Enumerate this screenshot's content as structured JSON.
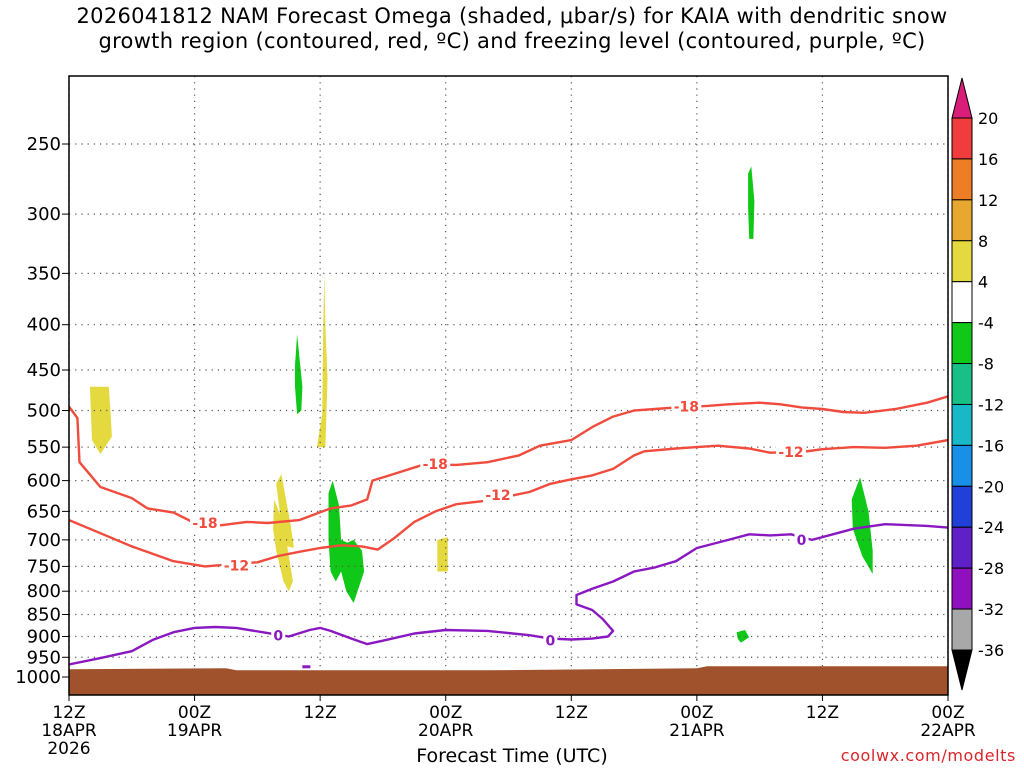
{
  "title": {
    "line1": "2026041812 NAM Forecast Omega (shaded, μbar/s) for KAIA with dendritic snow",
    "line2": "growth region (contoured, red, ºC) and freezing level (contoured, purple, ºC)"
  },
  "credit": "coolwx.com/modelts",
  "chart_data": {
    "type": "heatmap",
    "xlabel": "Forecast Time (UTC)",
    "ylabel": "",
    "x_unit": "hours since 2026-04-18 12Z",
    "xlim": [
      0,
      84
    ],
    "ylim": [
      1000,
      200
    ],
    "y_scale": "log-pressure",
    "grid": true,
    "x_ticks": [
      {
        "x": 0,
        "label": [
          "12Z",
          "18APR",
          "2026"
        ]
      },
      {
        "x": 12,
        "label": [
          "00Z",
          "19APR"
        ]
      },
      {
        "x": 24,
        "label": [
          "12Z"
        ]
      },
      {
        "x": 36,
        "label": [
          "00Z",
          "20APR"
        ]
      },
      {
        "x": 48,
        "label": [
          "12Z"
        ]
      },
      {
        "x": 60,
        "label": [
          "00Z",
          "21APR"
        ]
      },
      {
        "x": 72,
        "label": [
          "12Z"
        ]
      },
      {
        "x": 84,
        "label": [
          "00Z",
          "22APR"
        ]
      }
    ],
    "y_ticks": [
      250,
      300,
      350,
      400,
      450,
      500,
      550,
      600,
      650,
      700,
      750,
      800,
      850,
      900,
      950,
      1000
    ],
    "colorbar": {
      "labels": [
        "20",
        "16",
        "12",
        "8",
        "4",
        "-4",
        "-8",
        "-12",
        "-16",
        "-20",
        "-24",
        "-28",
        "-32",
        "-36"
      ],
      "colors": [
        "#d81e78",
        "#f03c3c",
        "#ee7e26",
        "#e8a830",
        "#e4da40",
        "#ffffff",
        "#10c818",
        "#18c088",
        "#18b8c8",
        "#1890e8",
        "#2040d8",
        "#6020c8",
        "#9010c0",
        "#a8a8a8",
        "#000000"
      ]
    },
    "contours": [
      {
        "name": "-18",
        "color": "#f04b3c",
        "label_pos": [
          [
            13,
            670
          ],
          [
            35,
            575
          ],
          [
            59,
            495
          ]
        ],
        "points": [
          [
            0,
            495
          ],
          [
            0.8,
            510
          ],
          [
            1,
            572
          ],
          [
            3,
            610
          ],
          [
            6,
            628
          ],
          [
            7.5,
            645
          ],
          [
            10,
            652
          ],
          [
            12,
            670
          ],
          [
            14,
            675
          ],
          [
            17,
            668
          ],
          [
            19,
            670
          ],
          [
            22,
            665
          ],
          [
            23.5,
            655
          ],
          [
            25,
            645
          ],
          [
            27,
            640
          ],
          [
            28.5,
            630
          ],
          [
            29,
            600
          ],
          [
            31,
            590
          ],
          [
            34,
            575
          ],
          [
            37,
            576
          ],
          [
            40,
            572
          ],
          [
            43,
            562
          ],
          [
            45,
            548
          ],
          [
            48,
            540
          ],
          [
            50,
            522
          ],
          [
            52,
            508
          ],
          [
            54,
            500
          ],
          [
            56,
            498
          ],
          [
            58,
            496
          ],
          [
            61,
            494
          ],
          [
            63,
            492
          ],
          [
            66,
            490
          ],
          [
            68,
            492
          ],
          [
            70,
            496
          ],
          [
            72,
            498
          ],
          [
            74,
            502
          ],
          [
            76,
            503
          ],
          [
            79,
            498
          ],
          [
            82,
            490
          ],
          [
            84,
            482
          ]
        ]
      },
      {
        "name": "-12",
        "color": "#f04b3c",
        "label_pos": [
          [
            16,
            748
          ],
          [
            41,
            623
          ],
          [
            69,
            557
          ]
        ],
        "points": [
          [
            0,
            665
          ],
          [
            3,
            688
          ],
          [
            6,
            712
          ],
          [
            10,
            740
          ],
          [
            13,
            750
          ],
          [
            16,
            745
          ],
          [
            18,
            742
          ],
          [
            20,
            730
          ],
          [
            22,
            722
          ],
          [
            24,
            715
          ],
          [
            26,
            710
          ],
          [
            28,
            712
          ],
          [
            29.5,
            718
          ],
          [
            31,
            698
          ],
          [
            33,
            668
          ],
          [
            35,
            650
          ],
          [
            37,
            638
          ],
          [
            40,
            632
          ],
          [
            44,
            618
          ],
          [
            46,
            605
          ],
          [
            48,
            598
          ],
          [
            50,
            592
          ],
          [
            52,
            582
          ],
          [
            54,
            562
          ],
          [
            55,
            556
          ],
          [
            58,
            552
          ],
          [
            60,
            550
          ],
          [
            62,
            548
          ],
          [
            65,
            552
          ],
          [
            67,
            558
          ],
          [
            70,
            557
          ],
          [
            72,
            553
          ],
          [
            75,
            550
          ],
          [
            78,
            551
          ],
          [
            81,
            548
          ],
          [
            84,
            540
          ]
        ]
      },
      {
        "name": "0",
        "color": "#8a18c0",
        "label_pos": [
          [
            20,
            898
          ],
          [
            46,
            910
          ],
          [
            70,
            700
          ]
        ],
        "points": [
          [
            0,
            968
          ],
          [
            3,
            952
          ],
          [
            6,
            935
          ],
          [
            8,
            908
          ],
          [
            10,
            890
          ],
          [
            12,
            880
          ],
          [
            14,
            878
          ],
          [
            16,
            880
          ],
          [
            19,
            892
          ],
          [
            21,
            900
          ],
          [
            23,
            885
          ],
          [
            24,
            880
          ],
          [
            25,
            887
          ],
          [
            27,
            905
          ],
          [
            28.5,
            918
          ],
          [
            30,
            910
          ],
          [
            33,
            893
          ],
          [
            36,
            885
          ],
          [
            40,
            887
          ],
          [
            44,
            897
          ],
          [
            46,
            905
          ],
          [
            48,
            907
          ],
          [
            50,
            905
          ],
          [
            51.5,
            900
          ],
          [
            52,
            887
          ],
          [
            51,
            860
          ],
          [
            50,
            840
          ],
          [
            48.5,
            828
          ],
          [
            48.5,
            808
          ],
          [
            50,
            795
          ],
          [
            52,
            780
          ],
          [
            54,
            760
          ],
          [
            56,
            752
          ],
          [
            58,
            740
          ],
          [
            60,
            715
          ],
          [
            63,
            700
          ],
          [
            65,
            690
          ],
          [
            67,
            692
          ],
          [
            69,
            690
          ],
          [
            71,
            700
          ],
          [
            73,
            690
          ],
          [
            75,
            680
          ],
          [
            78,
            672
          ],
          [
            82,
            675
          ],
          [
            84,
            678
          ]
        ]
      }
    ],
    "omega_shaded": [
      {
        "value": "4 to 8",
        "color": "#e4da40",
        "points": [
          [
            2,
            470
          ],
          [
            3.8,
            470
          ],
          [
            4,
            510
          ],
          [
            4.1,
            535
          ],
          [
            3,
            560
          ],
          [
            2.2,
            540
          ],
          [
            2.1,
            505
          ]
        ]
      },
      {
        "value": "4 to 8",
        "color": "#e4da40",
        "points": [
          [
            19.8,
            605
          ],
          [
            20.3,
            590
          ],
          [
            21.2,
            675
          ],
          [
            21.5,
            715
          ],
          [
            20.5,
            710
          ],
          [
            20.2,
            660
          ]
        ]
      },
      {
        "value": "4 to 8",
        "color": "#e4da40",
        "points": [
          [
            23.7,
            550
          ],
          [
            24.2,
            505
          ],
          [
            24.3,
            400
          ],
          [
            24.4,
            350
          ],
          [
            24.5,
            400
          ],
          [
            24.7,
            460
          ],
          [
            24.5,
            550
          ]
        ]
      },
      {
        "value": "4 to 8",
        "color": "#e4da40",
        "points": [
          [
            19.6,
            630
          ],
          [
            20.5,
            670
          ],
          [
            21.4,
            780
          ],
          [
            21,
            800
          ],
          [
            20.5,
            780
          ],
          [
            19.8,
            720
          ],
          [
            19.5,
            680
          ]
        ]
      },
      {
        "value": "4 to 8",
        "color": "#e4da40",
        "points": [
          [
            35.2,
            700
          ],
          [
            36.2,
            695
          ],
          [
            36.2,
            760
          ],
          [
            35.2,
            760
          ]
        ]
      },
      {
        "value": "-4 to -8",
        "color": "#10c818",
        "points": [
          [
            21.8,
            410
          ],
          [
            22.3,
            470
          ],
          [
            22.2,
            500
          ],
          [
            21.8,
            505
          ],
          [
            21.6,
            470
          ],
          [
            21.6,
            445
          ]
        ]
      },
      {
        "value": "-4 to -8",
        "color": "#10c818",
        "points": [
          [
            24.8,
            620
          ],
          [
            25.2,
            600
          ],
          [
            25.8,
            640
          ],
          [
            26,
            700
          ],
          [
            26.6,
            705
          ],
          [
            27.2,
            700
          ],
          [
            28,
            720
          ],
          [
            28.2,
            760
          ],
          [
            27.2,
            825
          ],
          [
            26.5,
            800
          ],
          [
            26,
            760
          ],
          [
            25.5,
            780
          ],
          [
            25,
            760
          ],
          [
            24.8,
            700
          ]
        ]
      },
      {
        "value": "-4 to -8",
        "color": "#10c818",
        "points": [
          [
            64.9,
            270
          ],
          [
            65.2,
            265
          ],
          [
            65.5,
            290
          ],
          [
            65.4,
            320
          ],
          [
            65,
            320
          ],
          [
            64.9,
            295
          ]
        ]
      },
      {
        "value": "-4 to -8",
        "color": "#10c818",
        "points": [
          [
            74.8,
            630
          ],
          [
            75.6,
            595
          ],
          [
            76.4,
            650
          ],
          [
            76.8,
            720
          ],
          [
            76.8,
            765
          ],
          [
            75.8,
            730
          ],
          [
            74.9,
            680
          ]
        ]
      },
      {
        "value": "-4 to -8",
        "color": "#10c818",
        "points": [
          [
            63.8,
            890
          ],
          [
            64.6,
            885
          ],
          [
            65,
            902
          ],
          [
            64.2,
            915
          ],
          [
            63.9,
            905
          ]
        ]
      }
    ],
    "terrain": {
      "color": "#a0522d",
      "from_pressure": 975
    }
  }
}
